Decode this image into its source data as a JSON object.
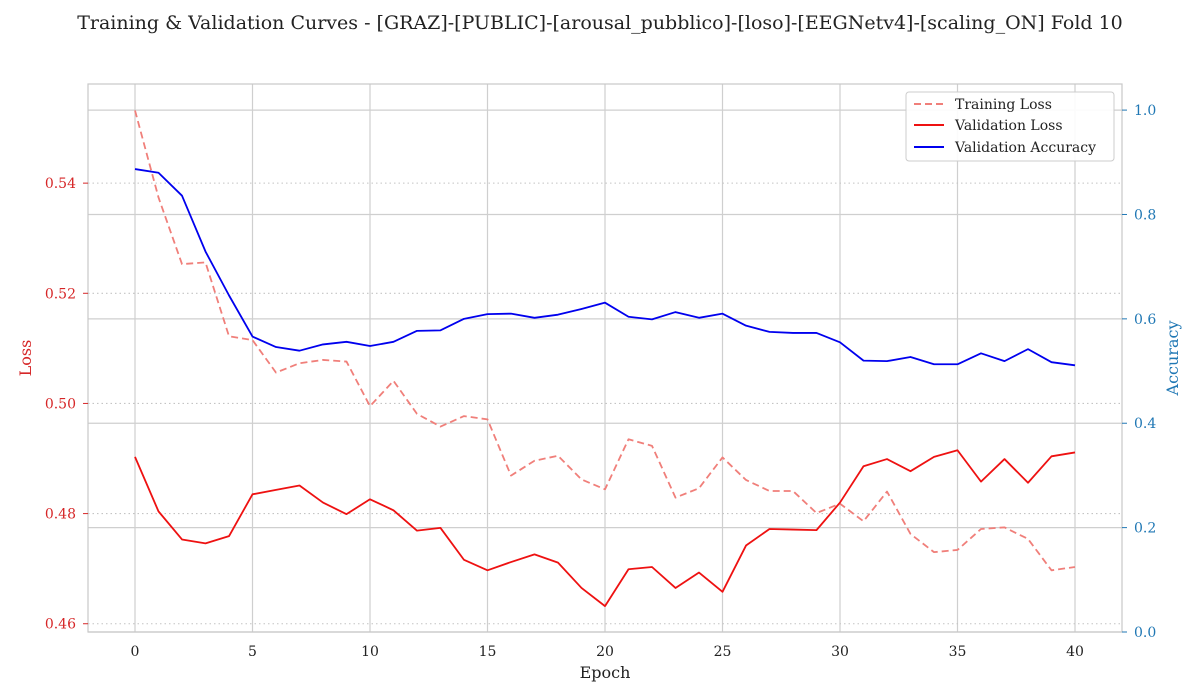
{
  "chart_data": {
    "type": "line",
    "title": "Training & Validation Curves - [GRAZ]-[PUBLIC]-[arousal_pubblico]-[loso]-[EEGNetv4]-[scaling_ON] Fold 10",
    "xlabel": "Epoch",
    "ylabel_left": "Loss",
    "ylabel_right": "Accuracy",
    "xlim": [
      -2,
      42
    ],
    "ylim_left": [
      0.4585,
      0.558
    ],
    "ylim_right": [
      0.0,
      1.05
    ],
    "x_ticks": [
      0,
      5,
      10,
      15,
      20,
      25,
      30,
      35,
      40
    ],
    "y_left_ticks": [
      0.46,
      0.48,
      0.5,
      0.52,
      0.54
    ],
    "y_right_ticks": [
      0.0,
      0.2,
      0.4,
      0.6,
      0.8,
      1.0
    ],
    "y_left_tick_labels": [
      "0.46",
      "0.48",
      "0.50",
      "0.52",
      "0.54"
    ],
    "y_right_tick_labels": [
      "0.0",
      "0.2",
      "0.4",
      "0.6",
      "0.8",
      "1.0"
    ],
    "legend_position": "top-right",
    "grid": true,
    "x": [
      0,
      1,
      2,
      3,
      4,
      5,
      6,
      7,
      8,
      9,
      10,
      11,
      12,
      13,
      14,
      15,
      16,
      17,
      18,
      19,
      20,
      21,
      22,
      23,
      24,
      25,
      26,
      27,
      28,
      29,
      30,
      31,
      32,
      33,
      34,
      35,
      36,
      37,
      38,
      39,
      40
    ],
    "series": [
      {
        "name": "Training Loss",
        "axis": "left",
        "color": "#f07f7a",
        "style": "dashed",
        "values": [
          0.5532,
          0.5374,
          0.5253,
          0.5256,
          0.5122,
          0.5115,
          0.5056,
          0.5073,
          0.5079,
          0.5076,
          0.4995,
          0.5041,
          0.4981,
          0.4958,
          0.4977,
          0.4971,
          0.4869,
          0.4896,
          0.4905,
          0.4862,
          0.4844,
          0.4935,
          0.4923,
          0.4829,
          0.4846,
          0.4902,
          0.4861,
          0.4841,
          0.4841,
          0.4801,
          0.4818,
          0.4786,
          0.484,
          0.4763,
          0.473,
          0.4734,
          0.4772,
          0.4775,
          0.4754,
          0.4697,
          0.4703
        ]
      },
      {
        "name": "Validation Loss",
        "axis": "left",
        "color": "#ee1111",
        "style": "solid",
        "values": [
          0.4903,
          0.4804,
          0.4753,
          0.4746,
          0.4759,
          0.4835,
          0.4843,
          0.4851,
          0.482,
          0.4799,
          0.4826,
          0.4806,
          0.4769,
          0.4774,
          0.4716,
          0.4697,
          0.4712,
          0.4726,
          0.4711,
          0.4665,
          0.4632,
          0.4699,
          0.4703,
          0.4665,
          0.4693,
          0.4658,
          0.4742,
          0.4772,
          0.4771,
          0.477,
          0.482,
          0.4886,
          0.4899,
          0.4877,
          0.4903,
          0.4915,
          0.4858,
          0.4899,
          0.4856,
          0.4904,
          0.4911
        ]
      },
      {
        "name": "Validation Accuracy",
        "axis": "right",
        "color": "#0000ee",
        "style": "solid",
        "values": [
          0.887,
          0.88,
          0.836,
          0.729,
          0.645,
          0.566,
          0.546,
          0.539,
          0.551,
          0.556,
          0.548,
          0.556,
          0.577,
          0.578,
          0.6,
          0.609,
          0.61,
          0.602,
          0.608,
          0.619,
          0.631,
          0.604,
          0.599,
          0.613,
          0.602,
          0.61,
          0.587,
          0.575,
          0.573,
          0.573,
          0.555,
          0.52,
          0.519,
          0.527,
          0.513,
          0.513,
          0.534,
          0.519,
          0.542,
          0.517,
          0.511
        ]
      }
    ]
  }
}
